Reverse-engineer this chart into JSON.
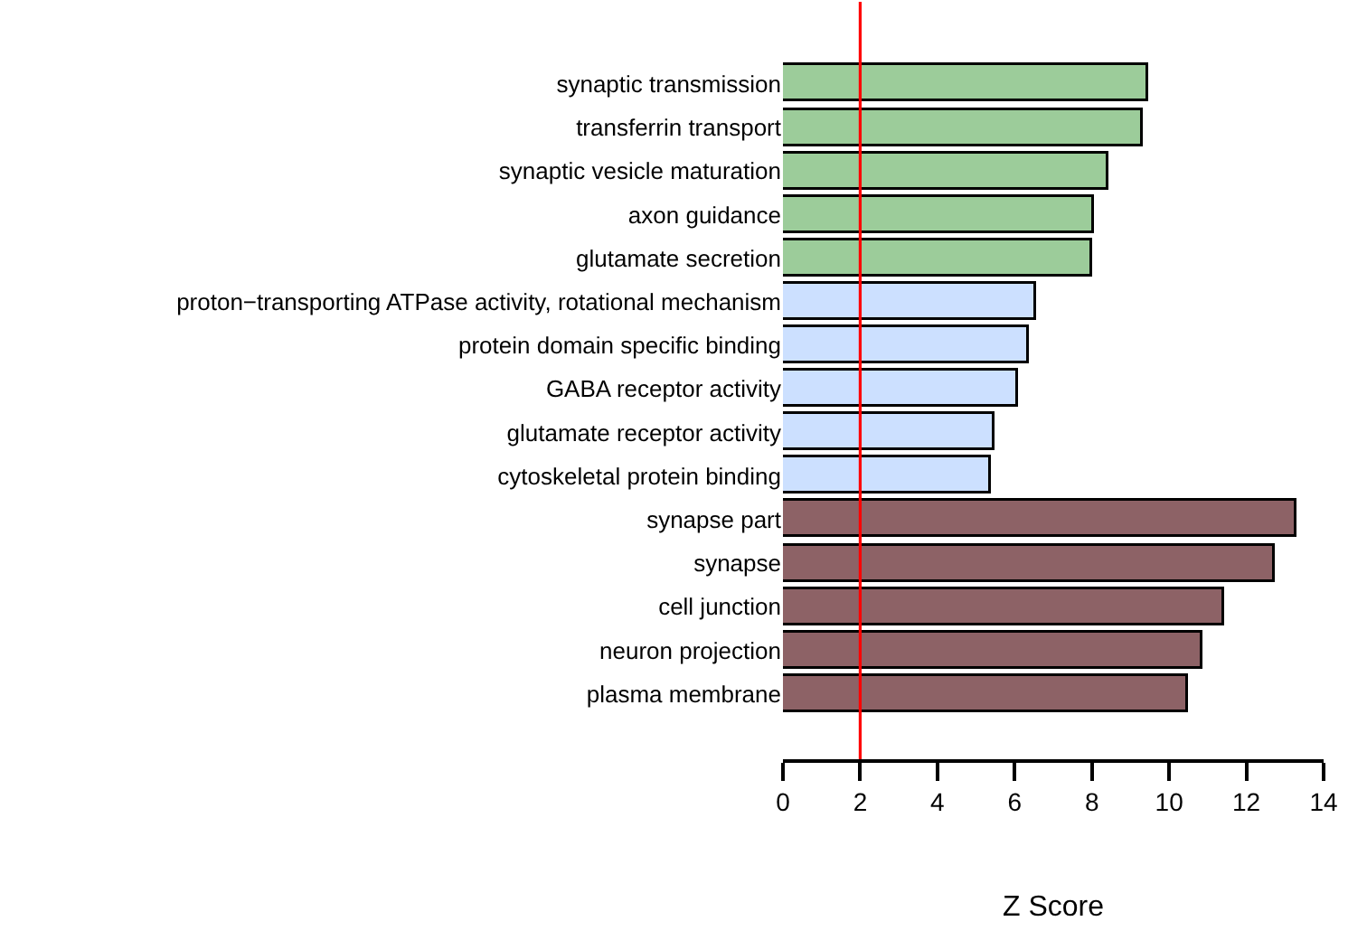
{
  "chart_data": {
    "type": "bar",
    "orientation": "horizontal",
    "xlabel": "Z Score",
    "categories": [
      "synaptic transmission",
      "transferrin transport",
      "synaptic vesicle maturation",
      "axon guidance",
      "glutamate secretion",
      "proton−transporting ATPase activity, rotational mechanism",
      "protein domain specific binding",
      "GABA receptor activity",
      "glutamate receptor activity",
      "cytoskeletal protein binding",
      "synapse part",
      "synapse",
      "cell junction",
      "neuron projection",
      "plasma membrane"
    ],
    "values": [
      9.44,
      9.33,
      8.42,
      8.03,
      8.01,
      6.56,
      6.38,
      6.07,
      5.46,
      5.38,
      13.32,
      12.75,
      11.41,
      10.88,
      10.47
    ],
    "colors": [
      "#9ccc9a",
      "#9ccc9a",
      "#9ccc9a",
      "#9ccc9a",
      "#9ccc9a",
      "#cce0ff",
      "#cce0ff",
      "#cce0ff",
      "#cce0ff",
      "#cce0ff",
      "#8d6266",
      "#8d6266",
      "#8d6266",
      "#8d6266",
      "#8d6266"
    ],
    "xlim": [
      0,
      14
    ],
    "xticks": [
      0,
      2,
      4,
      6,
      8,
      10,
      12,
      14
    ],
    "ref_lines": [
      {
        "axis": "x",
        "value": 2,
        "color": "#ff0000"
      }
    ]
  }
}
